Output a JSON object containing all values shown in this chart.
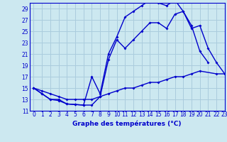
{
  "xlabel": "Graphe des températures (°C)",
  "bg_color": "#cce8f0",
  "grid_color": "#aaccdd",
  "line_color": "#0000cc",
  "ylim": [
    11,
    30
  ],
  "xlim": [
    -0.5,
    23
  ],
  "yticks": [
    11,
    13,
    15,
    17,
    19,
    21,
    23,
    25,
    27,
    29
  ],
  "xticks": [
    0,
    1,
    2,
    3,
    4,
    5,
    6,
    7,
    8,
    9,
    10,
    11,
    12,
    13,
    14,
    15,
    16,
    17,
    18,
    19,
    20,
    21,
    22,
    23
  ],
  "series1_x": [
    0,
    1,
    2,
    3,
    4,
    5,
    6,
    7,
    8,
    9,
    10,
    11,
    12,
    13,
    14,
    15,
    16,
    17,
    18,
    19,
    20,
    21
  ],
  "series1_y": [
    15,
    14,
    13,
    13,
    12.2,
    12.1,
    12.0,
    17.0,
    14.0,
    21.0,
    24.0,
    27.5,
    28.5,
    29.5,
    30.5,
    30.0,
    29.5,
    30.5,
    28.5,
    26.0,
    21.5,
    19.5
  ],
  "series2_x": [
    0,
    1,
    2,
    3,
    4,
    5,
    6,
    7,
    8,
    9,
    10,
    11,
    12,
    13,
    14,
    15,
    16,
    17,
    18,
    19,
    20,
    21,
    22,
    23
  ],
  "series2_y": [
    15,
    14,
    13,
    12.8,
    12.2,
    12.1,
    12.0,
    12.0,
    13.5,
    20.0,
    23.5,
    22.0,
    23.5,
    25.0,
    26.5,
    26.5,
    25.5,
    28.0,
    28.5,
    25.5,
    26.0,
    22.0,
    19.5,
    17.5
  ],
  "series3_x": [
    0,
    1,
    2,
    3,
    4,
    5,
    6,
    7,
    8,
    9,
    10,
    11,
    12,
    13,
    14,
    15,
    16,
    17,
    18,
    19,
    20,
    22,
    23
  ],
  "series3_y": [
    15,
    14.5,
    14.0,
    13.5,
    13.0,
    13.0,
    13.0,
    13.0,
    13.5,
    14.0,
    14.5,
    15.0,
    15.0,
    15.5,
    16.0,
    16.0,
    16.5,
    17.0,
    17.0,
    17.5,
    18.0,
    17.5,
    17.5
  ]
}
